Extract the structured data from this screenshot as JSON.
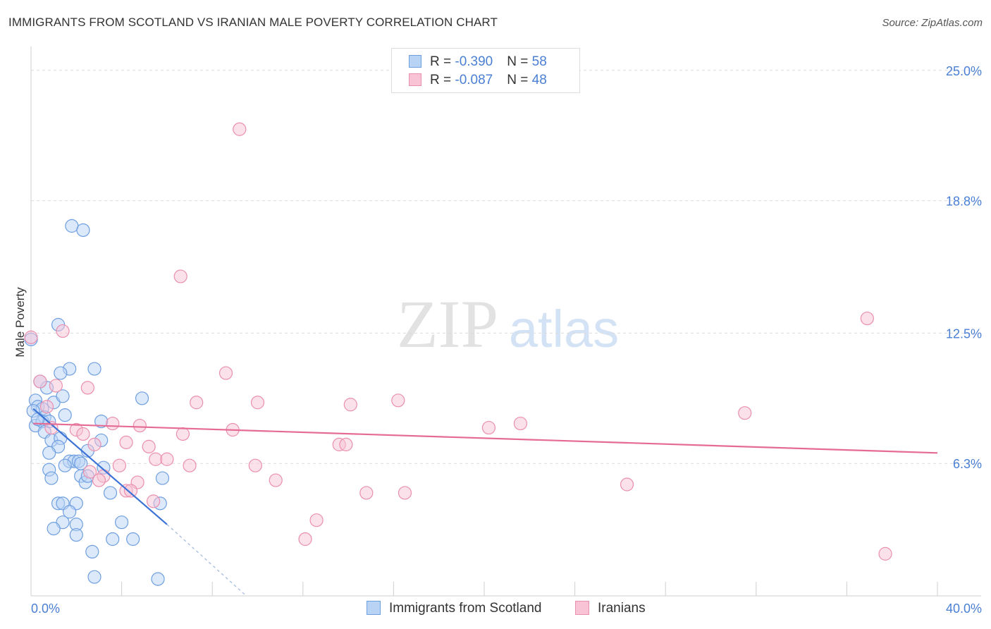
{
  "header": {
    "title": "IMMIGRANTS FROM SCOTLAND VS IRANIAN MALE POVERTY CORRELATION CHART",
    "source": "Source: ZipAtlas.com"
  },
  "watermark": {
    "zip": "ZIP",
    "atlas": "atlas"
  },
  "colors": {
    "scotland_fill": "#b9d3f5",
    "scotland_stroke": "#6f9fe0",
    "scotland_line": "#3b72d6",
    "iranians_fill": "#f8c4d5",
    "iranians_stroke": "#ea8fae",
    "iranians_line": "#e56b95",
    "axis_label": "#4a7fd4"
  },
  "legend": {
    "rows": [
      {
        "r_label": "R = ",
        "r_value": "-0.390",
        "n_label": "N = ",
        "n_value": "58"
      },
      {
        "r_label": "R = ",
        "r_value": "-0.087",
        "n_label": "N = ",
        "n_value": "48"
      }
    ]
  },
  "bottom_legend": {
    "series1": "Immigrants from Scotland",
    "series2": "Iranians"
  },
  "chart_data": {
    "type": "scatter",
    "title": "IMMIGRANTS FROM SCOTLAND VS IRANIAN MALE POVERTY CORRELATION CHART",
    "xlabel": "",
    "ylabel": "Male Poverty",
    "xlim": [
      0,
      40
    ],
    "ylim": [
      0,
      26
    ],
    "x_tick_labels": [
      "0.0%",
      "40.0%"
    ],
    "y_ticks": [
      6.3,
      12.5,
      18.8,
      25.0
    ],
    "y_tick_labels": [
      "6.3%",
      "12.5%",
      "18.8%",
      "25.0%"
    ],
    "grid": true,
    "legend_position": "top-center",
    "series": [
      {
        "name": "Immigrants from Scotland",
        "r": -0.39,
        "n": 58,
        "trend": {
          "x": [
            0.1,
            6.0
          ],
          "y": [
            8.9,
            3.4
          ],
          "dashed_to": [
            9.5,
            0.0
          ]
        },
        "points": [
          [
            1.8,
            17.6
          ],
          [
            2.3,
            17.4
          ],
          [
            1.2,
            12.9
          ],
          [
            1.7,
            10.8
          ],
          [
            1.3,
            10.6
          ],
          [
            2.8,
            10.8
          ],
          [
            0.7,
            9.9
          ],
          [
            0.4,
            10.2
          ],
          [
            0.2,
            9.3
          ],
          [
            0.3,
            9.0
          ],
          [
            0.5,
            8.9
          ],
          [
            0.1,
            8.8
          ],
          [
            0.6,
            8.5
          ],
          [
            1.0,
            9.2
          ],
          [
            1.4,
            9.5
          ],
          [
            0.2,
            8.1
          ],
          [
            0.5,
            8.3
          ],
          [
            0.8,
            8.3
          ],
          [
            1.5,
            8.6
          ],
          [
            0.6,
            7.8
          ],
          [
            3.1,
            8.3
          ],
          [
            4.9,
            9.4
          ],
          [
            0.9,
            7.4
          ],
          [
            1.3,
            7.5
          ],
          [
            3.1,
            7.4
          ],
          [
            1.2,
            7.1
          ],
          [
            0.8,
            6.8
          ],
          [
            2.5,
            6.9
          ],
          [
            1.7,
            6.4
          ],
          [
            1.9,
            6.4
          ],
          [
            2.1,
            6.4
          ],
          [
            2.2,
            6.3
          ],
          [
            1.5,
            6.2
          ],
          [
            0.8,
            6.0
          ],
          [
            3.2,
            6.1
          ],
          [
            0.9,
            5.6
          ],
          [
            2.2,
            5.7
          ],
          [
            2.4,
            5.4
          ],
          [
            2.5,
            5.7
          ],
          [
            5.8,
            5.6
          ],
          [
            1.2,
            4.4
          ],
          [
            1.4,
            4.4
          ],
          [
            2.0,
            4.4
          ],
          [
            5.7,
            4.4
          ],
          [
            1.7,
            4.0
          ],
          [
            1.4,
            3.5
          ],
          [
            2.0,
            3.4
          ],
          [
            4.0,
            3.5
          ],
          [
            1.0,
            3.2
          ],
          [
            2.0,
            2.9
          ],
          [
            3.6,
            2.7
          ],
          [
            4.5,
            2.7
          ],
          [
            2.7,
            2.1
          ],
          [
            2.8,
            0.9
          ],
          [
            5.6,
            0.8
          ],
          [
            0.0,
            12.2
          ],
          [
            0.3,
            8.4
          ],
          [
            3.5,
            4.9
          ]
        ]
      },
      {
        "name": "Iranians",
        "r": -0.087,
        "n": 48,
        "trend": {
          "x": [
            0.1,
            40.0
          ],
          "y": [
            8.2,
            6.8
          ]
        },
        "points": [
          [
            9.2,
            22.2
          ],
          [
            6.6,
            15.2
          ],
          [
            1.4,
            12.6
          ],
          [
            36.9,
            13.2
          ],
          [
            8.6,
            10.6
          ],
          [
            0.4,
            10.2
          ],
          [
            2.5,
            9.9
          ],
          [
            16.2,
            9.3
          ],
          [
            0.7,
            9.0
          ],
          [
            7.3,
            9.2
          ],
          [
            10.0,
            9.2
          ],
          [
            14.1,
            9.1
          ],
          [
            31.5,
            8.7
          ],
          [
            3.6,
            8.2
          ],
          [
            4.8,
            8.1
          ],
          [
            21.6,
            8.2
          ],
          [
            20.2,
            8.0
          ],
          [
            0.9,
            8.0
          ],
          [
            2.0,
            7.9
          ],
          [
            8.9,
            7.9
          ],
          [
            2.3,
            7.7
          ],
          [
            6.7,
            7.7
          ],
          [
            4.2,
            7.3
          ],
          [
            2.8,
            7.2
          ],
          [
            13.6,
            7.2
          ],
          [
            13.9,
            7.2
          ],
          [
            5.2,
            7.1
          ],
          [
            5.5,
            6.5
          ],
          [
            6.0,
            6.5
          ],
          [
            7.0,
            6.2
          ],
          [
            9.9,
            6.2
          ],
          [
            3.2,
            5.7
          ],
          [
            3.0,
            5.5
          ],
          [
            10.8,
            5.5
          ],
          [
            4.7,
            5.4
          ],
          [
            26.3,
            5.3
          ],
          [
            4.2,
            5.0
          ],
          [
            4.4,
            5.0
          ],
          [
            14.8,
            4.9
          ],
          [
            16.5,
            4.9
          ],
          [
            5.4,
            4.5
          ],
          [
            12.6,
            3.6
          ],
          [
            12.1,
            2.7
          ],
          [
            37.7,
            2.0
          ],
          [
            0.0,
            12.3
          ],
          [
            1.1,
            10.0
          ],
          [
            3.9,
            6.2
          ],
          [
            2.6,
            5.9
          ]
        ]
      }
    ]
  }
}
